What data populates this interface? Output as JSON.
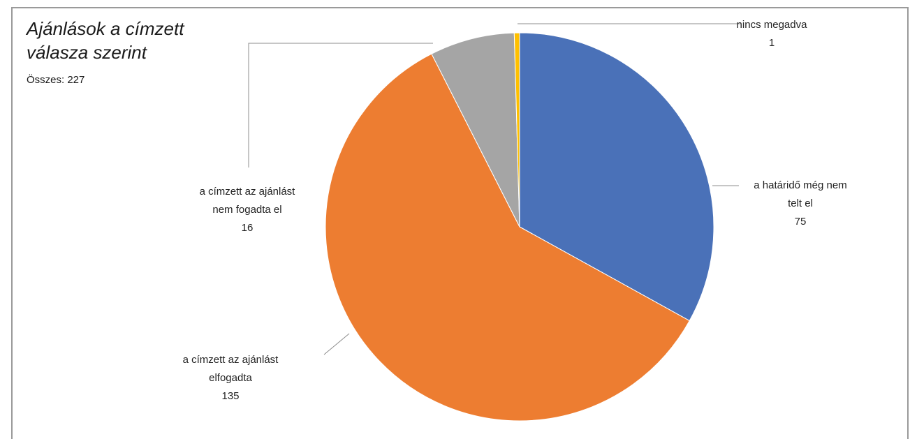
{
  "chart_data": {
    "type": "pie",
    "title": "Ajánlások a címzett válasza szerint",
    "subtitle": "Összes: 227",
    "slices": [
      {
        "label_lines": [
          "a határidő még nem",
          "telt el",
          "75"
        ],
        "value": 75,
        "color": "#4A71B8"
      },
      {
        "label_lines": [
          "a címzett az ajánlást",
          "elfogadta",
          "135"
        ],
        "value": 135,
        "color": "#ED7D31"
      },
      {
        "label_lines": [
          "a címzett az ajánlást",
          "nem fogadta el",
          "16"
        ],
        "value": 16,
        "color": "#A5A5A5"
      },
      {
        "label_lines": [
          "nincs megadva",
          "1"
        ],
        "value": 1,
        "color": "#FFC000"
      }
    ],
    "legend": "none",
    "start": "12 o'clock, clockwise"
  }
}
